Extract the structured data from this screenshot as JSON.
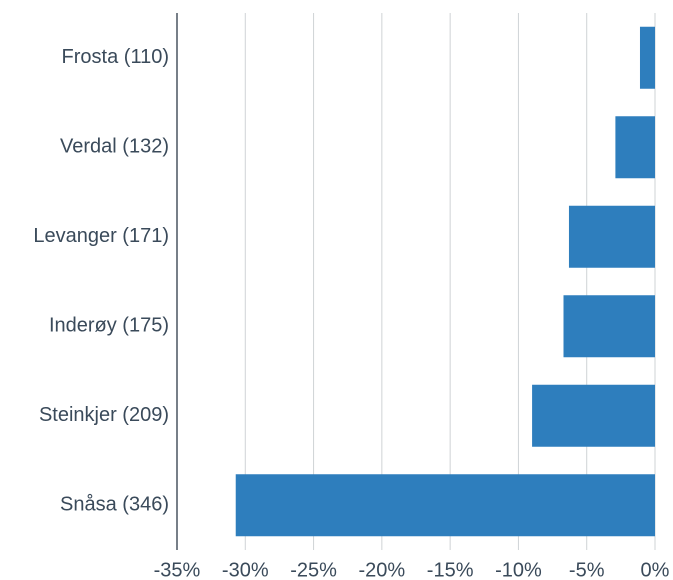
{
  "chart_data": {
    "type": "hbar",
    "categories": [
      "Frosta (110)",
      "Verdal (132)",
      "Levanger (171)",
      "Inderøy (175)",
      "Steinkjer (209)",
      "Snåsa (346)"
    ],
    "values": [
      -1.1,
      -2.9,
      -6.3,
      -6.7,
      -9.0,
      -30.7
    ],
    "color": "#2e7ebd",
    "xlim": [
      -35,
      0
    ],
    "xticks": [
      {
        "value": -35,
        "label": "-35%"
      },
      {
        "value": -30,
        "label": "-30%"
      },
      {
        "value": -25,
        "label": "-25%"
      },
      {
        "value": -20,
        "label": "-20%"
      },
      {
        "value": -15,
        "label": "-15%"
      },
      {
        "value": -10,
        "label": "-10%"
      },
      {
        "value": -5,
        "label": "-5%"
      },
      {
        "value": 0,
        "label": "0%"
      }
    ],
    "grid": true
  }
}
